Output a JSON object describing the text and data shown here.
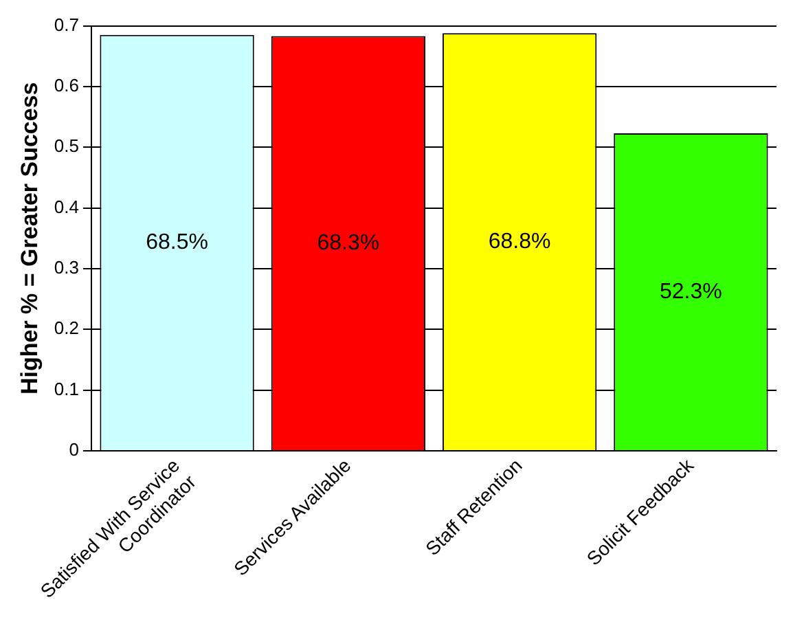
{
  "chart_data": {
    "type": "bar",
    "ylabel": "Higher % = Greater Success",
    "categories": [
      "Satisfied With Service Coordinator",
      "Services Available",
      "Staff Retention",
      "Solicit Feedback"
    ],
    "values": [
      0.685,
      0.683,
      0.688,
      0.523
    ],
    "colors": [
      "#ccffff",
      "#ff0000",
      "#ffff00",
      "#33ff00"
    ],
    "value_labels": [
      "68.5%",
      "68.3%",
      "68.8%",
      "52.3%"
    ],
    "ylim": [
      0,
      0.7
    ],
    "yticks": [
      0,
      0.1,
      0.2,
      0.3,
      0.4,
      0.5,
      0.6,
      0.7
    ],
    "grid": "y",
    "legend": false
  }
}
